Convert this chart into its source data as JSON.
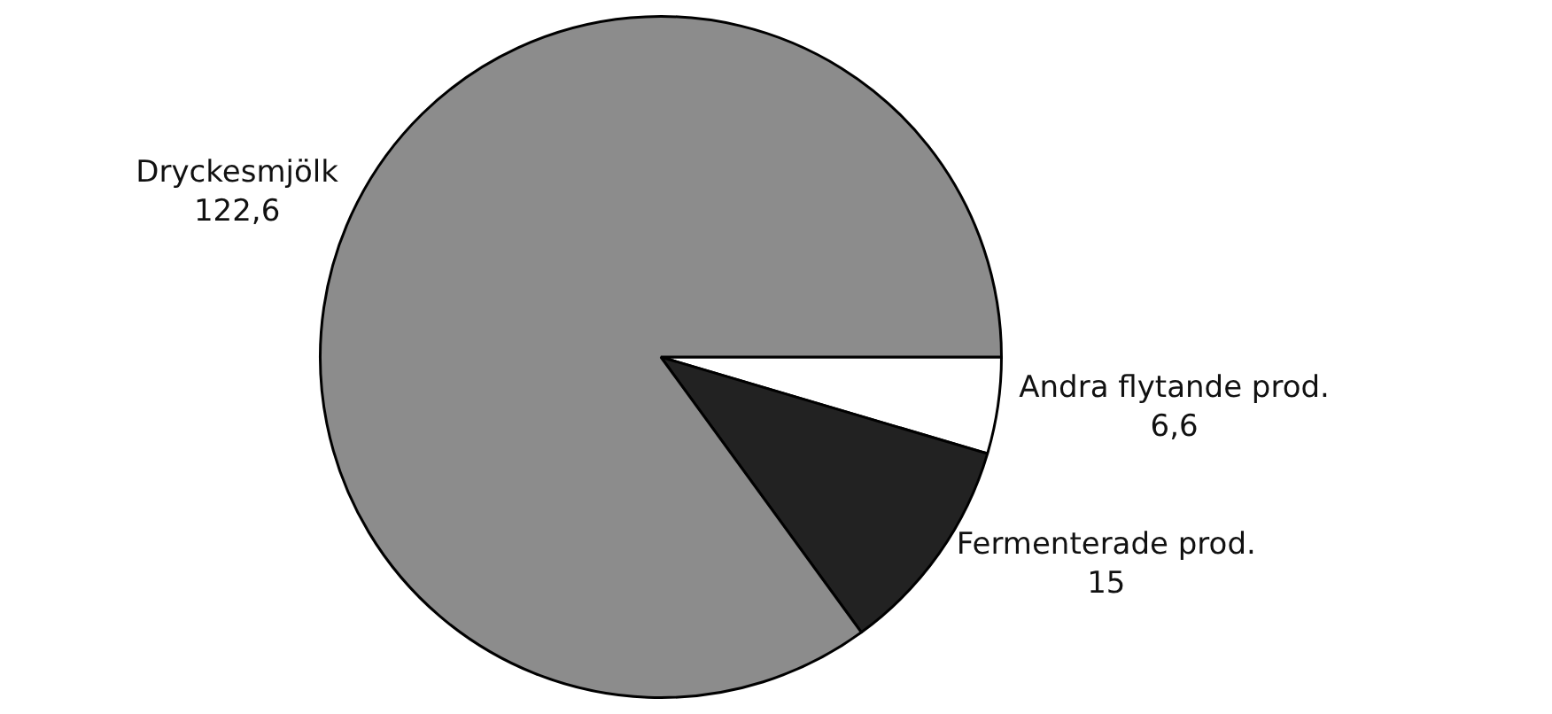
{
  "chart_data": {
    "type": "pie",
    "categories": [
      "Andra flytande prod.",
      "Fermenterade prod.",
      "Dryckesmjölk"
    ],
    "values": [
      6.6,
      15,
      122.6
    ],
    "value_labels": [
      "6,6",
      "15",
      "122,6"
    ],
    "colors": [
      "#ffffff",
      "#222222",
      "#8c8c8c"
    ],
    "legend": false
  }
}
